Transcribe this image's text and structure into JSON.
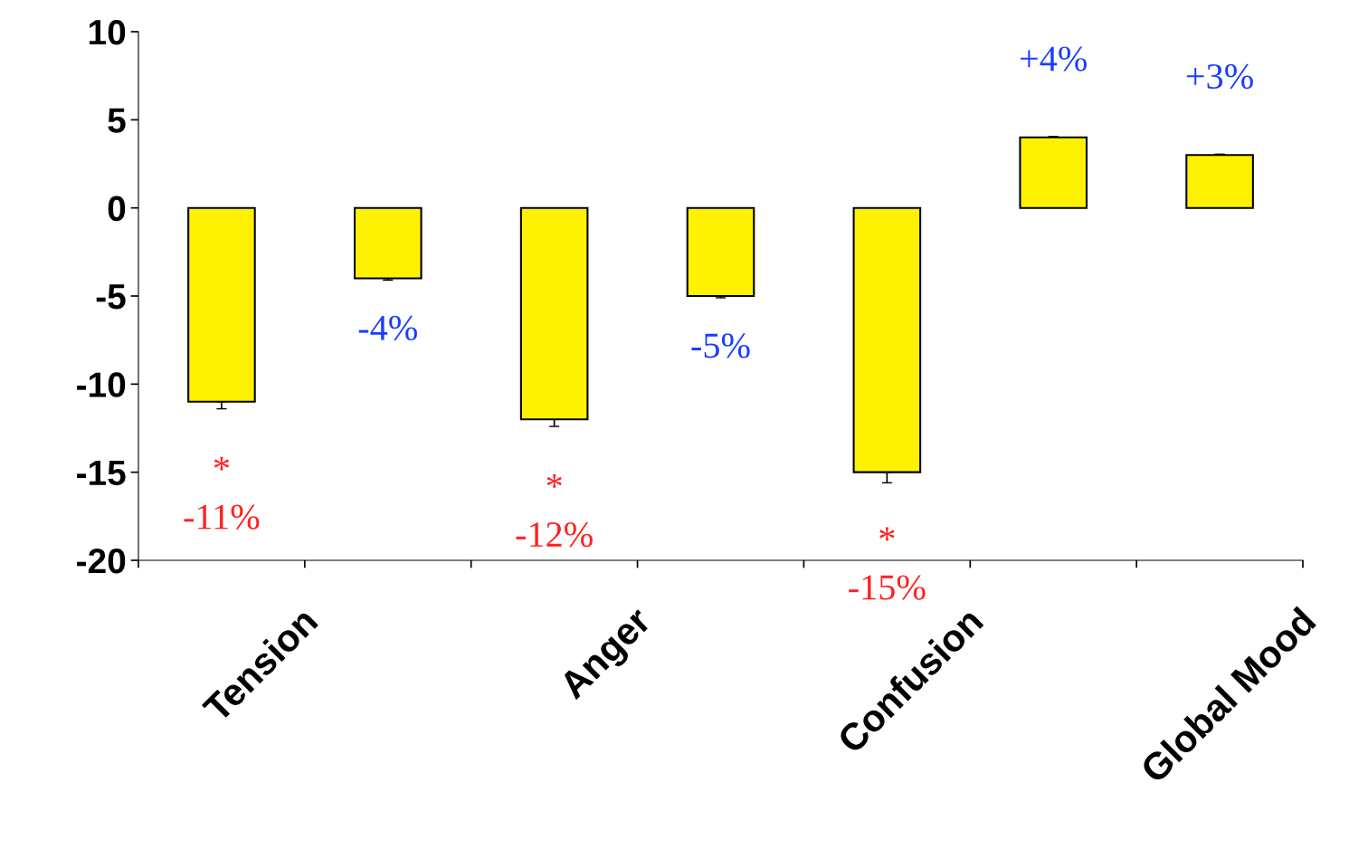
{
  "chart_data": {
    "type": "bar",
    "categories": [
      "Tension",
      null,
      "Anger",
      null,
      "Confusion",
      null,
      "Global Mood"
    ],
    "values": [
      -11,
      -4,
      -12,
      -5,
      -15,
      4,
      3
    ],
    "errors": [
      [
        -11.4,
        -11
      ],
      [
        -4.1,
        -4
      ],
      [
        -12.4,
        -12
      ],
      [
        -5.1,
        -5
      ],
      [
        -15.6,
        -15
      ],
      [
        4,
        4.05
      ],
      [
        3,
        3.05
      ]
    ],
    "color": "#fff200",
    "value_labels": [
      "*\n-11%",
      "-4%",
      "*\n-12%",
      "-5%",
      "*\n-15%",
      "+4%",
      "+3%"
    ],
    "ylim": [
      -20,
      10
    ],
    "yticks": [
      -20,
      -15,
      -10,
      -5,
      0,
      5,
      10
    ],
    "grid": false,
    "legend": false
  }
}
